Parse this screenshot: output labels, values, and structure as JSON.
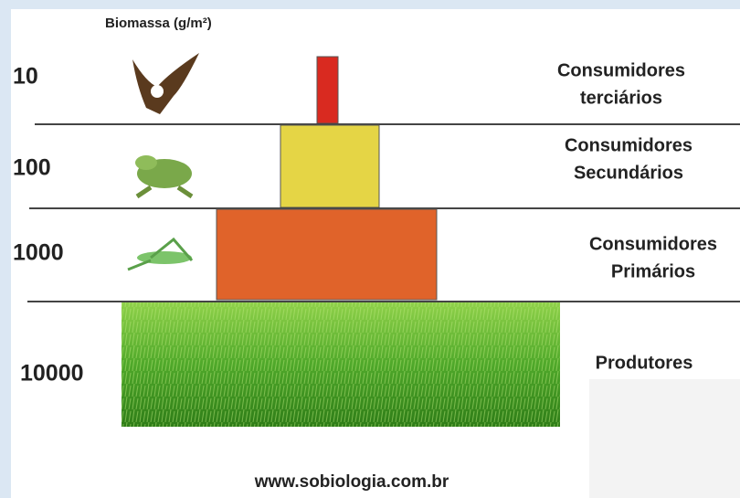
{
  "header": {
    "title": "Biomassa (g/m²)"
  },
  "levels": [
    {
      "value": 10,
      "name": [
        "Consumidores",
        "terciários"
      ]
    },
    {
      "value": 100,
      "name": [
        "Consumidores",
        "Secundários"
      ]
    },
    {
      "value": 1000,
      "name": [
        "Consumidores",
        "Primários"
      ]
    },
    {
      "value": 10000,
      "name": [
        "Produtores"
      ]
    }
  ],
  "footer": {
    "source": "www.sobiologia.com.br"
  }
}
